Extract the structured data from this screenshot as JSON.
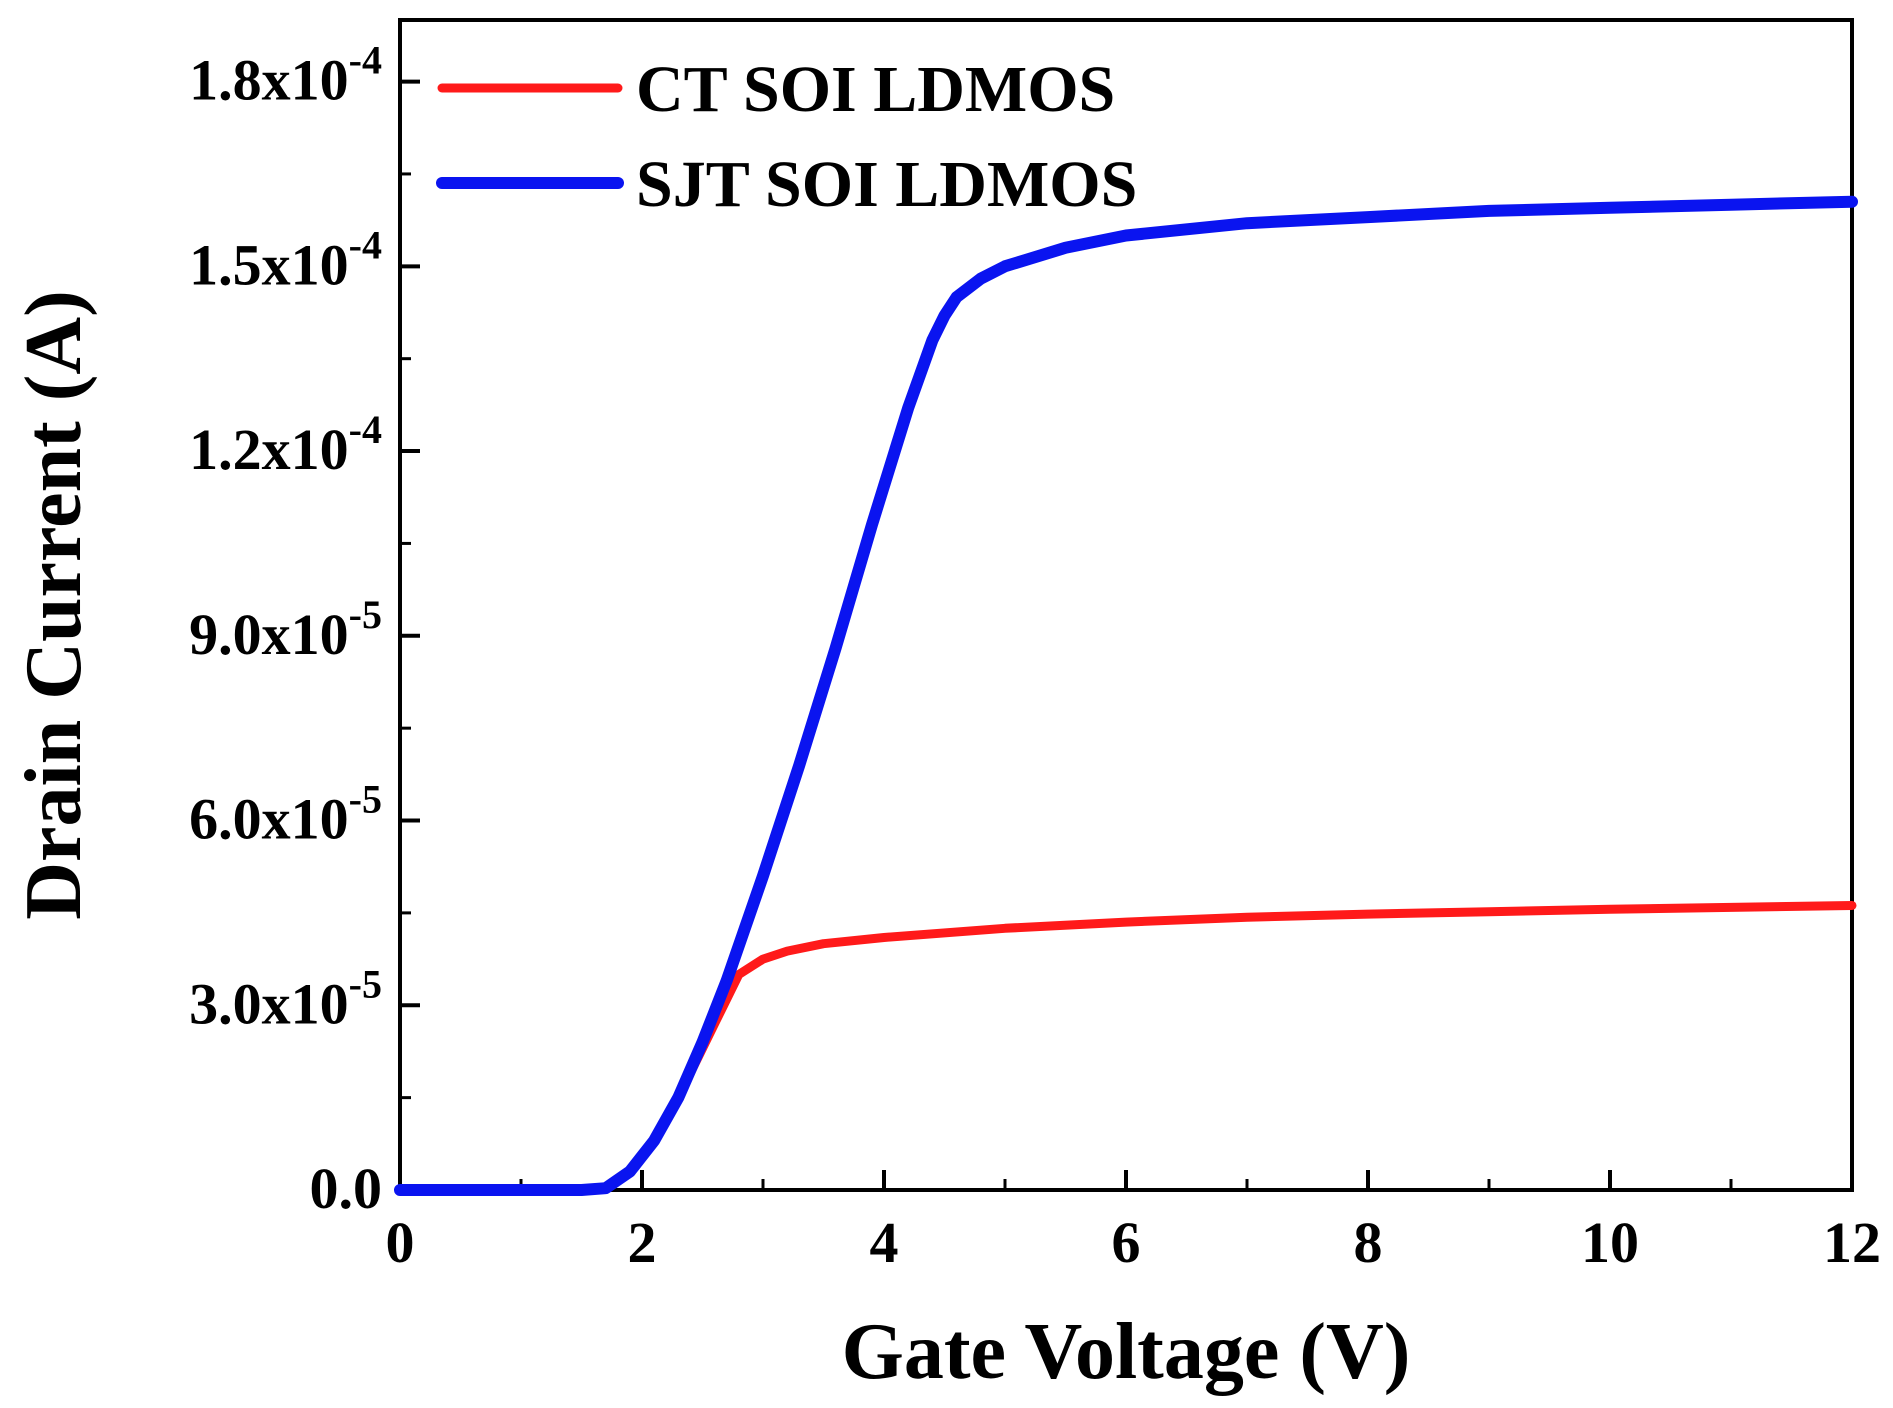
{
  "chart_data": {
    "type": "line",
    "title": "",
    "xlabel": "Gate Voltage (V)",
    "ylabel": "Drain Current (A)",
    "xlim": [
      0,
      12
    ],
    "ylim": [
      0,
      0.00019
    ],
    "x_ticks": [
      {
        "value": 0,
        "label": "0"
      },
      {
        "value": 2,
        "label": "2"
      },
      {
        "value": 4,
        "label": "4"
      },
      {
        "value": 6,
        "label": "6"
      },
      {
        "value": 8,
        "label": "8"
      },
      {
        "value": 10,
        "label": "10"
      },
      {
        "value": 12,
        "label": "12"
      }
    ],
    "y_ticks": [
      {
        "value": 0,
        "mantissa": "0.0",
        "exponent": ""
      },
      {
        "value": 3e-05,
        "mantissa": "3.0x10",
        "exponent": "-5"
      },
      {
        "value": 6e-05,
        "mantissa": "6.0x10",
        "exponent": "-5"
      },
      {
        "value": 9e-05,
        "mantissa": "9.0x10",
        "exponent": "-5"
      },
      {
        "value": 0.00012,
        "mantissa": "1.2x10",
        "exponent": "-4"
      },
      {
        "value": 0.00015,
        "mantissa": "1.5x10",
        "exponent": "-4"
      },
      {
        "value": 0.00018,
        "mantissa": "1.8x10",
        "exponent": "-4"
      }
    ],
    "legend_position": "top-left",
    "series": [
      {
        "name": "CT SOI LDMOS",
        "color": "#ff1a1a",
        "x": [
          0,
          1.0,
          1.5,
          1.7,
          1.9,
          2.1,
          2.3,
          2.5,
          2.6,
          2.7,
          2.8,
          3.0,
          3.2,
          3.5,
          4.0,
          5.0,
          6.0,
          7.0,
          8.0,
          9.0,
          10.0,
          11.0,
          12.0
        ],
        "y": [
          0,
          0,
          0,
          3e-07,
          3e-06,
          8e-06,
          1.5e-05,
          2.3e-05,
          2.7e-05,
          3.1e-05,
          3.5e-05,
          3.75e-05,
          3.88e-05,
          4e-05,
          4.1e-05,
          4.25e-05,
          4.35e-05,
          4.43e-05,
          4.48e-05,
          4.52e-05,
          4.56e-05,
          4.59e-05,
          4.62e-05
        ]
      },
      {
        "name": "SJT SOI LDMOS",
        "color": "#0a14f0",
        "x": [
          0,
          1.0,
          1.5,
          1.7,
          1.9,
          2.1,
          2.3,
          2.5,
          2.7,
          3.0,
          3.3,
          3.6,
          3.9,
          4.2,
          4.4,
          4.5,
          4.6,
          4.8,
          5.0,
          5.5,
          6.0,
          7.0,
          8.0,
          9.0,
          10.0,
          11.0,
          12.0
        ],
        "y": [
          0,
          0,
          0,
          3e-07,
          3e-06,
          8e-06,
          1.5e-05,
          2.4e-05,
          3.4e-05,
          5.1e-05,
          6.9e-05,
          8.8e-05,
          0.000108,
          0.000127,
          0.000138,
          0.000142,
          0.000145,
          0.000148,
          0.00015,
          0.000153,
          0.000155,
          0.000157,
          0.000158,
          0.000159,
          0.0001595,
          0.00016,
          0.0001605
        ]
      }
    ]
  }
}
